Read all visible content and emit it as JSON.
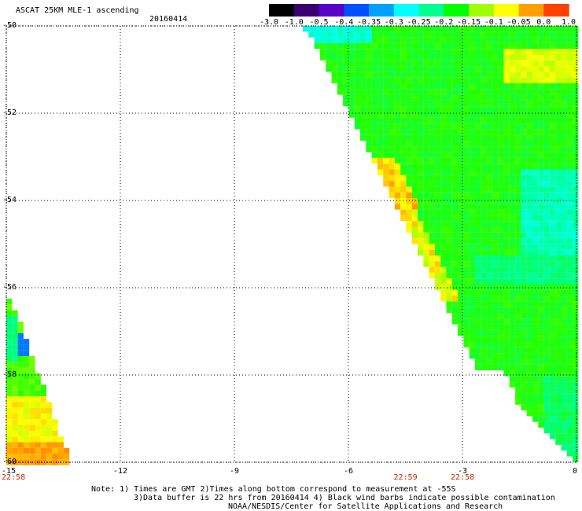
{
  "header": {
    "title": "ASCAT 25KM MLE-1 ascending",
    "date": "20160414"
  },
  "colorbar": {
    "labels": [
      "-3.0",
      "-1.0",
      "-0.5",
      "-0.4",
      "-0.35",
      "-0.3",
      "-0.25",
      "-0.2",
      "-0.15",
      "-0.1",
      "-0.05",
      "0.0",
      "1.0"
    ],
    "colors": [
      "#000000",
      "#3a0070",
      "#5a00c8",
      "#0050ff",
      "#00a0ff",
      "#00ffff",
      "#00ff90",
      "#00ff00",
      "#a0ff00",
      "#ffff00",
      "#ffa000",
      "#ff5000",
      "#ff0000"
    ]
  },
  "chart_data": {
    "type": "heatmap",
    "lon_ticks": [
      "-15",
      "-12",
      "-9",
      "-6",
      "-3",
      "0"
    ],
    "lat_ticks": [
      "-50",
      "-52",
      "-54",
      "-56",
      "-58",
      "-60"
    ],
    "xlim": [
      -15,
      0
    ],
    "ylim": [
      -60,
      -50
    ],
    "time_labels": [
      {
        "lon": -15,
        "text": "22:58"
      },
      {
        "lon": -4.5,
        "text": "22:59"
      },
      {
        "lon": -3,
        "text": "22:58"
      }
    ]
  },
  "footer": {
    "line1": "Note: 1) Times are GMT 2)Times along bottom correspond to measurement at -55S",
    "line2": "3)Data buffer is 22 hrs from 20160414 4) Black wind barbs indicate possible contamination",
    "line3": "NOAA/NESDIS/Center for Satellite Applications and Research"
  }
}
